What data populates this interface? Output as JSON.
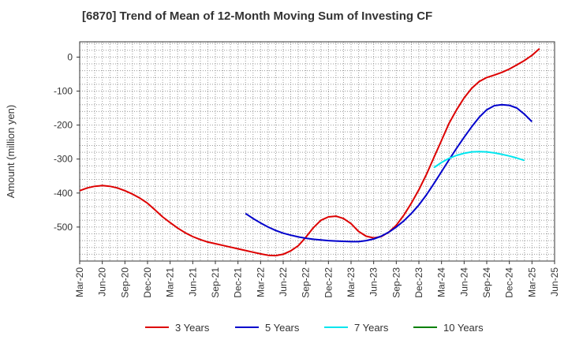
{
  "chart_data": {
    "type": "line",
    "title": "[6870]  Trend of Mean of 12-Month Moving Sum of Investing CF",
    "xlabel": "",
    "ylabel": "Amount (million yen)",
    "ylim": [
      -600,
      45
    ],
    "yticks": [
      0,
      -100,
      -200,
      -300,
      -400,
      -500
    ],
    "ytick_labels": [
      "0",
      "-100",
      "-200",
      "-300",
      "-400",
      "-500"
    ],
    "x_start": "Mar-2020",
    "x_end": "Jun-2025",
    "xtick_labels": [
      "Mar-20",
      "Jun-20",
      "Sep-20",
      "Dec-20",
      "Mar-21",
      "Jun-21",
      "Sep-21",
      "Dec-21",
      "Mar-22",
      "Jun-22",
      "Sep-22",
      "Dec-22",
      "Mar-23",
      "Jun-23",
      "Sep-23",
      "Dec-23",
      "Mar-24",
      "Jun-24",
      "Sep-24",
      "Dec-24",
      "Mar-25",
      "Jun-25"
    ],
    "series": [
      {
        "name": "3 Years",
        "color": "#dd0000",
        "points": [
          [
            0,
            -393
          ],
          [
            1,
            -385
          ],
          [
            2,
            -380
          ],
          [
            3,
            -378
          ],
          [
            4,
            -380
          ],
          [
            5,
            -385
          ],
          [
            6,
            -393
          ],
          [
            7,
            -403
          ],
          [
            8,
            -415
          ],
          [
            9,
            -430
          ],
          [
            10,
            -450
          ],
          [
            11,
            -470
          ],
          [
            12,
            -487
          ],
          [
            13,
            -503
          ],
          [
            14,
            -517
          ],
          [
            15,
            -528
          ],
          [
            16,
            -537
          ],
          [
            17,
            -544
          ],
          [
            18,
            -549
          ],
          [
            19,
            -554
          ],
          [
            20,
            -559
          ],
          [
            21,
            -564
          ],
          [
            22,
            -569
          ],
          [
            23,
            -574
          ],
          [
            24,
            -579
          ],
          [
            25,
            -583
          ],
          [
            26,
            -584
          ],
          [
            27,
            -580
          ],
          [
            28,
            -570
          ],
          [
            29,
            -555
          ],
          [
            30,
            -530
          ],
          [
            31,
            -502
          ],
          [
            32,
            -480
          ],
          [
            33,
            -470
          ],
          [
            34,
            -468
          ],
          [
            35,
            -475
          ],
          [
            36,
            -490
          ],
          [
            37,
            -513
          ],
          [
            38,
            -527
          ],
          [
            39,
            -532
          ],
          [
            40,
            -528
          ],
          [
            41,
            -515
          ],
          [
            42,
            -495
          ],
          [
            43,
            -465
          ],
          [
            44,
            -430
          ],
          [
            45,
            -390
          ],
          [
            46,
            -345
          ],
          [
            47,
            -295
          ],
          [
            48,
            -245
          ],
          [
            49,
            -195
          ],
          [
            50,
            -155
          ],
          [
            51,
            -120
          ],
          [
            52,
            -92
          ],
          [
            53,
            -72
          ],
          [
            54,
            -60
          ],
          [
            55,
            -53
          ],
          [
            56,
            -45
          ],
          [
            57,
            -35
          ],
          [
            58,
            -23
          ],
          [
            59,
            -10
          ],
          [
            60,
            5
          ],
          [
            61,
            25
          ]
        ]
      },
      {
        "name": "5 Years",
        "color": "#0000cc",
        "points": [
          [
            22,
            -460
          ],
          [
            23,
            -475
          ],
          [
            24,
            -488
          ],
          [
            25,
            -500
          ],
          [
            26,
            -510
          ],
          [
            27,
            -518
          ],
          [
            28,
            -524
          ],
          [
            29,
            -529
          ],
          [
            30,
            -533
          ],
          [
            31,
            -536
          ],
          [
            32,
            -538
          ],
          [
            33,
            -540
          ],
          [
            34,
            -541
          ],
          [
            35,
            -542
          ],
          [
            36,
            -543
          ],
          [
            37,
            -543
          ],
          [
            38,
            -540
          ],
          [
            39,
            -535
          ],
          [
            40,
            -527
          ],
          [
            41,
            -515
          ],
          [
            42,
            -500
          ],
          [
            43,
            -482
          ],
          [
            44,
            -460
          ],
          [
            45,
            -435
          ],
          [
            46,
            -405
          ],
          [
            47,
            -372
          ],
          [
            48,
            -337
          ],
          [
            49,
            -302
          ],
          [
            50,
            -268
          ],
          [
            51,
            -236
          ],
          [
            52,
            -205
          ],
          [
            53,
            -177
          ],
          [
            54,
            -155
          ],
          [
            55,
            -143
          ],
          [
            56,
            -140
          ],
          [
            57,
            -142
          ],
          [
            58,
            -150
          ],
          [
            59,
            -168
          ],
          [
            60,
            -190
          ]
        ]
      },
      {
        "name": "7 Years",
        "color": "#00e5ee",
        "points": [
          [
            47,
            -325
          ],
          [
            48,
            -310
          ],
          [
            49,
            -298
          ],
          [
            50,
            -289
          ],
          [
            51,
            -283
          ],
          [
            52,
            -279
          ],
          [
            53,
            -278
          ],
          [
            54,
            -279
          ],
          [
            55,
            -282
          ],
          [
            56,
            -286
          ],
          [
            57,
            -291
          ],
          [
            58,
            -297
          ],
          [
            59,
            -304
          ]
        ]
      },
      {
        "name": "10 Years",
        "color": "#008000",
        "points": []
      }
    ]
  },
  "legend": {
    "items": [
      {
        "label": "3 Years",
        "color": "#dd0000"
      },
      {
        "label": "5 Years",
        "color": "#0000cc"
      },
      {
        "label": "7 Years",
        "color": "#00e5ee"
      },
      {
        "label": "10 Years",
        "color": "#008000"
      }
    ]
  }
}
